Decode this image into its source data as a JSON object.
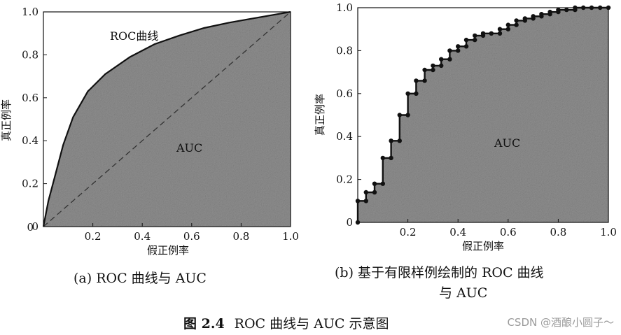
{
  "chart_data": [
    {
      "type": "area",
      "panel": "a",
      "title": "(a) ROC 曲线与 AUC",
      "xlabel": "假正例率",
      "ylabel": "真正例率",
      "xlim": [
        0,
        1.0
      ],
      "ylim": [
        0,
        1.0
      ],
      "xticks": [
        "0.2",
        "0.4",
        "0.6",
        "0.8",
        "1.0"
      ],
      "yticks": [
        "0",
        "0.2",
        "0.4",
        "0.6",
        "0.8",
        "1.0"
      ],
      "origin_label": "0",
      "annotations": {
        "curve": "ROC曲线",
        "area": "AUC"
      },
      "series": [
        {
          "x": [
            0,
            0.02,
            0.05,
            0.08,
            0.12,
            0.18,
            0.25,
            0.35,
            0.45,
            0.55,
            0.65,
            0.75,
            0.85,
            0.95,
            1.0
          ],
          "y": [
            0,
            0.12,
            0.25,
            0.38,
            0.51,
            0.63,
            0.71,
            0.79,
            0.85,
            0.89,
            0.925,
            0.95,
            0.97,
            0.99,
            1.0
          ]
        }
      ],
      "reference_line": {
        "x": [
          0,
          1.0
        ],
        "y": [
          0,
          1.0
        ],
        "style": "dashed"
      },
      "grid": false,
      "fill": "gray"
    },
    {
      "type": "line",
      "panel": "b",
      "title": "(b) 基于有限样例绘制的 ROC 曲线与 AUC",
      "xlabel": "假正例率",
      "ylabel": "真正例率",
      "xlim": [
        0,
        1.0
      ],
      "ylim": [
        0,
        1.0
      ],
      "xticks": [
        "0.2",
        "0.4",
        "0.6",
        "0.8",
        "1.0"
      ],
      "yticks": [
        "0",
        "0.2",
        "0.4",
        "0.6",
        "0.8",
        "1.0"
      ],
      "annotations": {
        "area": "AUC"
      },
      "series": [
        {
          "x": [
            0,
            0,
            0.033,
            0.033,
            0.067,
            0.067,
            0.1,
            0.1,
            0.133,
            0.133,
            0.167,
            0.167,
            0.2,
            0.2,
            0.233,
            0.233,
            0.267,
            0.267,
            0.3,
            0.3,
            0.333,
            0.333,
            0.367,
            0.367,
            0.4,
            0.4,
            0.433,
            0.433,
            0.467,
            0.467,
            0.5,
            0.5,
            0.533,
            0.533,
            0.567,
            0.567,
            0.6,
            0.6,
            0.633,
            0.633,
            0.667,
            0.667,
            0.7,
            0.7,
            0.733,
            0.733,
            0.767,
            0.767,
            0.8,
            0.8,
            0.833,
            0.833,
            0.867,
            0.867,
            0.9,
            0.9,
            0.933,
            0.933,
            0.967,
            0.967,
            1.0
          ],
          "y": [
            0,
            0.1,
            0.1,
            0.14,
            0.14,
            0.18,
            0.18,
            0.3,
            0.3,
            0.38,
            0.38,
            0.5,
            0.5,
            0.6,
            0.6,
            0.66,
            0.66,
            0.71,
            0.71,
            0.73,
            0.73,
            0.76,
            0.76,
            0.8,
            0.8,
            0.82,
            0.82,
            0.85,
            0.85,
            0.87,
            0.87,
            0.88,
            0.88,
            0.88,
            0.88,
            0.9,
            0.9,
            0.92,
            0.92,
            0.94,
            0.94,
            0.95,
            0.95,
            0.96,
            0.96,
            0.97,
            0.97,
            0.98,
            0.98,
            0.99,
            0.99,
            0.99,
            0.99,
            1.0,
            1.0,
            1.0,
            1.0,
            1.0,
            1.0,
            1.0,
            1.0
          ]
        }
      ],
      "grid": false,
      "fill": "gray"
    }
  ],
  "figure_caption": {
    "number": "图 2.4",
    "text": "ROC 曲线与 AUC 示意图"
  },
  "captions": {
    "a": "(a) ROC 曲线与 AUC",
    "b_line1": "(b) 基于有限样例绘制的 ROC 曲线",
    "b_line2": "与 AUC"
  },
  "watermark": "CSDN @酒酿小圆子～",
  "colors": {
    "fill": "#8f8f8f",
    "line": "#111111",
    "background": "#ffffff"
  }
}
